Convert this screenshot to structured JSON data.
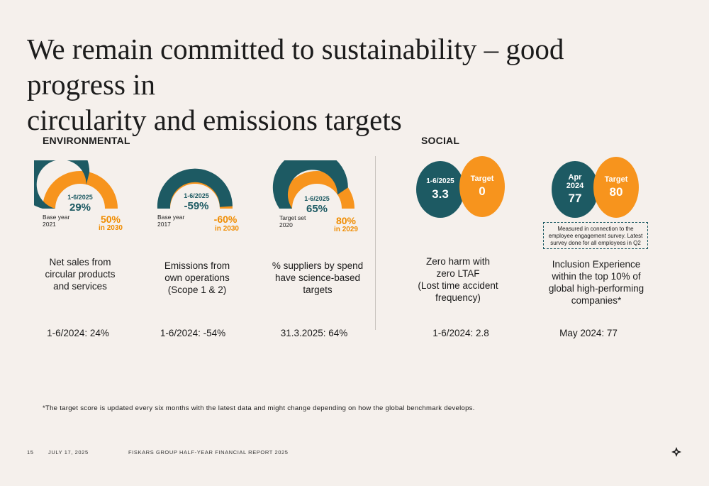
{
  "title": {
    "line1": "We remain committed to sustainability – good progress in",
    "line2": "circularity and emissions targets"
  },
  "sections": {
    "environmental": "ENVIRONMENTAL",
    "social": "SOCIAL"
  },
  "colors": {
    "teal": "#1d5a63",
    "orange": "#f7941d",
    "background": "#f5f0ec"
  },
  "environmental": [
    {
      "period_label": "1-6/2025",
      "current": "29%",
      "progress_fraction": 0.58,
      "base_line1": "Base year",
      "base_line2": "2021",
      "target": "50%",
      "target_sub": "in 2030",
      "desc": [
        "Net sales from",
        "circular products",
        "and services"
      ],
      "previous": "1-6/2024: 24%"
    },
    {
      "period_label": "1-6/2025",
      "current": "-59%",
      "progress_fraction": 0.98,
      "base_line1": "Base year",
      "base_line2": "2017",
      "target": "-60%",
      "target_sub": "in 2030",
      "desc": [
        "Emissions from",
        "own operations",
        "(Scope 1 & 2)"
      ],
      "previous": "1-6/2024: -54%"
    },
    {
      "period_label": "1-6/2025",
      "current": "65%",
      "progress_fraction": 0.81,
      "base_line1": "Target set",
      "base_line2": "2020",
      "target": "80%",
      "target_sub": "in 2029",
      "desc": [
        "% suppliers by spend",
        "have science-based",
        "targets"
      ],
      "previous": "31.3.2025: 64%"
    }
  ],
  "social": [
    {
      "current_label": "1-6/2025",
      "current_value": "3.3",
      "target_label": "Target",
      "target_value": "0",
      "desc": [
        "Zero harm with",
        "zero LTAF",
        "(Lost time accident",
        "frequency)"
      ],
      "previous": "1-6/2024: 2.8"
    },
    {
      "current_label_line1": "Apr",
      "current_label_line2": "2024",
      "current_value": "77",
      "target_label": "Target",
      "target_value": "80",
      "note": "Measured in connection to the employee engagement survey. Latest survey done for all employees in Q2",
      "desc": [
        "Inclusion Experience",
        "within the top 10% of",
        "global high-performing",
        "companies*"
      ],
      "previous": "May 2024: 77"
    }
  ],
  "footnote": "*The target score is updated every six months with the latest data and might change depending on how the global benchmark develops.",
  "footer": {
    "page": "15",
    "date": "JULY 17, 2025",
    "report": "FISKARS GROUP HALF-YEAR FINANCIAL REPORT 2025"
  },
  "logo_icon": "fiskars-diamond-icon"
}
